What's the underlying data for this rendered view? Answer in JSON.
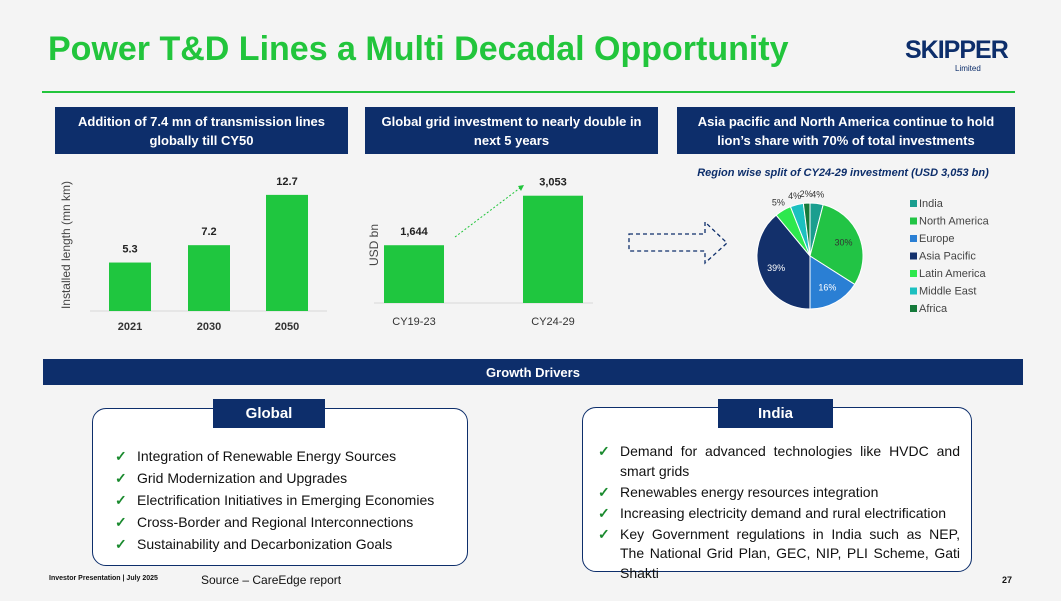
{
  "header": {
    "title": "Power T&D Lines a Multi Decadal Opportunity",
    "logo": "SKIPPER",
    "logo_sub": "Limited"
  },
  "panels": [
    {
      "heading": "Addition of 7.4 mn of transmission lines globally till CY50"
    },
    {
      "heading": "Global grid investment to nearly double in next 5 years"
    },
    {
      "heading": "Asia pacific and North America continue to hold lion’s share with 70% of total investments"
    }
  ],
  "chart_data": [
    {
      "type": "bar",
      "y_label": "Installed length (mn km)",
      "categories": [
        "2021",
        "2030",
        "2050"
      ],
      "values": [
        5.3,
        7.2,
        12.7
      ],
      "color": "#1fc63f",
      "ylim": [
        0,
        14
      ]
    },
    {
      "type": "bar",
      "y_label": "USD bn",
      "categories": [
        "CY19-23",
        "CY24-29"
      ],
      "values": [
        1644,
        3053
      ],
      "value_labels": [
        "1,644",
        "3,053"
      ],
      "color": "#1fc63f",
      "ylim": [
        0,
        3500
      ]
    },
    {
      "type": "pie",
      "title": "Region wise split of CY24-29 investment (USD 3,053 bn)",
      "categories": [
        "India",
        "North America",
        "Europe",
        "Asia Pacific",
        "Latin America",
        "Middle East",
        "Africa"
      ],
      "values": [
        4,
        30,
        16,
        39,
        5,
        4,
        2
      ],
      "value_labels": [
        "4%",
        "30%",
        "16%",
        "39%",
        "5%",
        "4%",
        "2%"
      ],
      "colors": [
        "#1a9e8f",
        "#22c445",
        "#2a7fd4",
        "#13306b",
        "#2ee84e",
        "#1cc0c0",
        "#157a3a"
      ],
      "legend": "right"
    }
  ],
  "drivers": {
    "title": "Growth Drivers",
    "sections": [
      {
        "name": "Global",
        "items": [
          "Integration of Renewable Energy Sources",
          "Grid Modernization and Upgrades",
          "Electrification Initiatives in Emerging Economies",
          "Cross-Border and Regional Interconnections",
          "Sustainability and Decarbonization Goals"
        ]
      },
      {
        "name": "India",
        "items": [
          "Demand for advanced technologies like HVDC and smart grids",
          "Renewables energy resources integration",
          "Increasing electricity demand and rural electrification",
          "Key Government regulations in India such as NEP, The National Grid Plan, GEC, NIP, PLI Scheme, Gati Shakti"
        ]
      }
    ]
  },
  "footer": {
    "left": "Investor Presentation | July 2025",
    "source": "Source – CareEdge report",
    "page": "27"
  }
}
